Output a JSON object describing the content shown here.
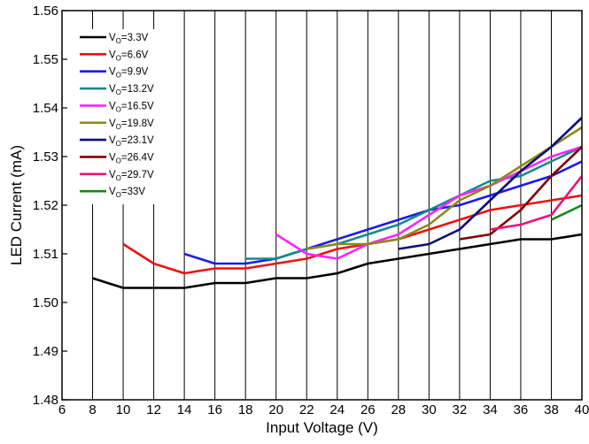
{
  "chart_data": {
    "type": "line",
    "xlabel": "Input Voltage (V)",
    "ylabel": "LED Current (mA)",
    "xlim": [
      6,
      40
    ],
    "ylim": [
      1.48,
      1.56
    ],
    "xticks": [
      "6",
      "8",
      "10",
      "12",
      "14",
      "16",
      "18",
      "20",
      "22",
      "24",
      "26",
      "28",
      "30",
      "32",
      "34",
      "36",
      "38",
      "40"
    ],
    "yticks": [
      "1.48",
      "1.49",
      "1.50",
      "1.51",
      "1.52",
      "1.53",
      "1.54",
      "1.55",
      "1.56"
    ],
    "grid": "vertical",
    "legend_position": "top-left",
    "series": [
      {
        "name": "VO=3.3V",
        "label_main": "V",
        "label_sub": "O",
        "label_rest": "=3.3V",
        "color": "#000000",
        "x": [
          8,
          10,
          12,
          14,
          16,
          18,
          20,
          22,
          24,
          26,
          28,
          30,
          32,
          34,
          36,
          38,
          40
        ],
        "y": [
          1.505,
          1.503,
          1.503,
          1.503,
          1.504,
          1.504,
          1.505,
          1.505,
          1.506,
          1.508,
          1.509,
          1.51,
          1.511,
          1.512,
          1.513,
          1.513,
          1.514
        ]
      },
      {
        "name": "VO=6.6V",
        "label_main": "V",
        "label_sub": "O",
        "label_rest": "=6.6V",
        "color": "#ee1111",
        "x": [
          10,
          12,
          14,
          16,
          18,
          20,
          22,
          24,
          26,
          28,
          30,
          32,
          34,
          36,
          38,
          40
        ],
        "y": [
          1.512,
          1.508,
          1.506,
          1.507,
          1.507,
          1.508,
          1.509,
          1.511,
          1.512,
          1.513,
          1.515,
          1.517,
          1.519,
          1.52,
          1.521,
          1.522
        ]
      },
      {
        "name": "VO=9.9V",
        "label_main": "V",
        "label_sub": "O",
        "label_rest": "=9.9V",
        "color": "#1a1aee",
        "x": [
          14,
          16,
          18,
          20,
          22,
          24,
          26,
          28,
          30,
          32,
          34,
          36,
          38,
          40
        ],
        "y": [
          1.51,
          1.508,
          1.508,
          1.509,
          1.511,
          1.513,
          1.515,
          1.517,
          1.519,
          1.52,
          1.522,
          1.524,
          1.526,
          1.529
        ]
      },
      {
        "name": "VO=13.2V",
        "label_main": "V",
        "label_sub": "O",
        "label_rest": "=13.2V",
        "color": "#158a8a",
        "x": [
          18,
          20,
          22,
          24,
          26,
          28,
          30,
          32,
          34,
          36,
          38,
          40
        ],
        "y": [
          1.509,
          1.509,
          1.511,
          1.512,
          1.514,
          1.516,
          1.519,
          1.522,
          1.525,
          1.526,
          1.529,
          1.532
        ]
      },
      {
        "name": "VO=16.5V",
        "label_main": "V",
        "label_sub": "O",
        "label_rest": "=16.5V",
        "color": "#ff22ff",
        "x": [
          20,
          22,
          24,
          26,
          28,
          30,
          32,
          34,
          36,
          38,
          40
        ],
        "y": [
          1.514,
          1.51,
          1.509,
          1.512,
          1.514,
          1.518,
          1.522,
          1.524,
          1.527,
          1.53,
          1.532
        ]
      },
      {
        "name": "VO=19.8V",
        "label_main": "V",
        "label_sub": "O",
        "label_rest": "=19.8V",
        "color": "#8a8a1a",
        "x": [
          22,
          24,
          26,
          28,
          30,
          32,
          34,
          36,
          38,
          40
        ],
        "y": [
          1.511,
          1.512,
          1.512,
          1.513,
          1.516,
          1.521,
          1.524,
          1.528,
          1.532,
          1.536
        ]
      },
      {
        "name": "VO=23.1V",
        "label_main": "V",
        "label_sub": "O",
        "label_rest": "=23.1V",
        "color": "#0b0b7a",
        "x": [
          28,
          30,
          32,
          34,
          36,
          38,
          40
        ],
        "y": [
          1.511,
          1.512,
          1.515,
          1.521,
          1.527,
          1.532,
          1.538
        ]
      },
      {
        "name": "VO=26.4V",
        "label_main": "V",
        "label_sub": "O",
        "label_rest": "=26.4V",
        "color": "#800000",
        "x": [
          32,
          34,
          36,
          38,
          40
        ],
        "y": [
          1.513,
          1.514,
          1.519,
          1.526,
          1.532
        ]
      },
      {
        "name": "VO=29.7V",
        "label_main": "V",
        "label_sub": "O",
        "label_rest": "=29.7V",
        "color": "#ee1177",
        "x": [
          34,
          36,
          38,
          40
        ],
        "y": [
          1.515,
          1.516,
          1.518,
          1.526
        ]
      },
      {
        "name": "VO=33V",
        "label_main": "V",
        "label_sub": "O",
        "label_rest": "=33V",
        "color": "#118a11",
        "x": [
          38,
          40
        ],
        "y": [
          1.517,
          1.52
        ]
      }
    ]
  }
}
